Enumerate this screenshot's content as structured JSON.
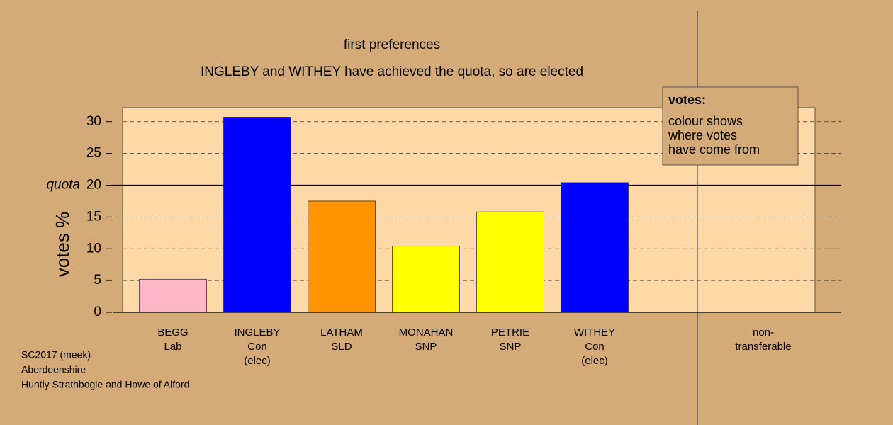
{
  "chart_data": {
    "type": "bar",
    "title": "first preferences",
    "subtitle": "INGLEBY and WITHEY have achieved the quota, so are elected",
    "y_label": "votes %",
    "categories": [
      [
        "BEGG",
        "Lab"
      ],
      [
        "INGLEBY",
        "Con",
        "(elec)"
      ],
      [
        "LATHAM",
        "SLD"
      ],
      [
        "MONAHAN",
        "SNP"
      ],
      [
        "PETRIE",
        "SNP"
      ],
      [
        "WITHEY",
        "Con",
        "(elec)"
      ],
      [
        "non-",
        "transferable"
      ]
    ],
    "values": [
      5.2,
      30.7,
      17.5,
      10.4,
      15.8,
      20.4,
      0
    ],
    "colors": [
      "#ffb6c8",
      "#0000ff",
      "#ff9400",
      "#ffff00",
      "#ffff00",
      "#0000ff",
      "#ffd8a8"
    ],
    "ylim": [
      0,
      32.2
    ],
    "yticks": [
      0,
      5,
      10,
      15,
      20,
      25,
      30
    ],
    "quota": {
      "value": 20,
      "label": "quota"
    },
    "grid": true,
    "legend": {
      "title": "votes:",
      "lines": [
        "colour shows",
        "where votes",
        "have come from"
      ]
    },
    "footer": [
      "SC2017 (meek)",
      "Aberdeenshire",
      "Huntly Strathbogie and Howe of Alford"
    ]
  }
}
